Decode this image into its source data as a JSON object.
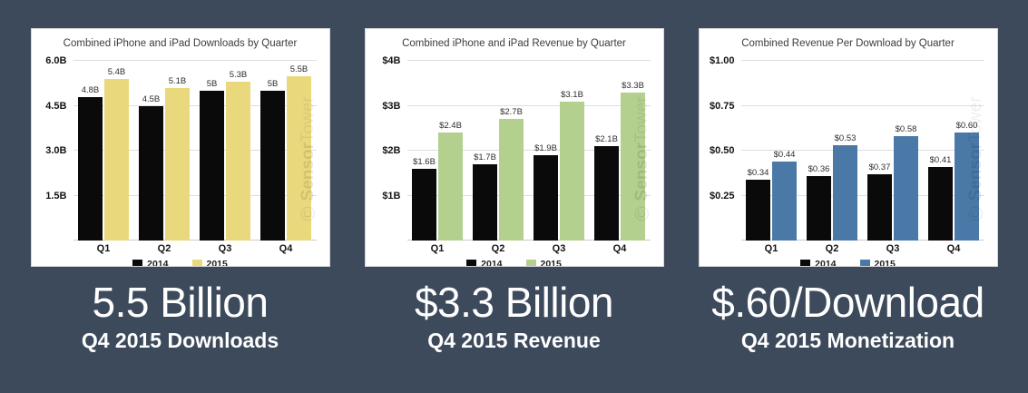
{
  "page": {
    "background_color": "#3d4a5c",
    "card_color": "#ffffff"
  },
  "watermark": {
    "logo_glyph": "©",
    "brand_first": "Sensor",
    "brand_second": "Tower"
  },
  "chart_data": [
    {
      "type": "bar",
      "title": "Combined iPhone and iPad Downloads by Quarter",
      "categories": [
        "Q1",
        "Q2",
        "Q3",
        "Q4"
      ],
      "series": [
        {
          "name": "2014",
          "color": "#0a0a0a",
          "values": [
            4.8,
            4.5,
            5.0,
            5.0
          ],
          "labels": [
            "4.8B",
            "4.5B",
            "5B",
            "5B"
          ]
        },
        {
          "name": "2015",
          "color": "#ead97c",
          "values": [
            5.4,
            5.1,
            5.3,
            5.5
          ],
          "labels": [
            "5.4B",
            "5.1B",
            "5.3B",
            "5.5B"
          ]
        }
      ],
      "ylim": [
        0,
        6.0
      ],
      "yticks": [
        {
          "value": 1.5,
          "label": "1.5B"
        },
        {
          "value": 3.0,
          "label": "3.0B"
        },
        {
          "value": 4.5,
          "label": "4.5B"
        },
        {
          "value": 6.0,
          "label": "6.0B"
        }
      ],
      "grid": true,
      "legend_position": "bottom"
    },
    {
      "type": "bar",
      "title": "Combined iPhone and iPad Revenue by Quarter",
      "categories": [
        "Q1",
        "Q2",
        "Q3",
        "Q4"
      ],
      "series": [
        {
          "name": "2014",
          "color": "#0a0a0a",
          "values": [
            1.6,
            1.7,
            1.9,
            2.1
          ],
          "labels": [
            "$1.6B",
            "$1.7B",
            "$1.9B",
            "$2.1B"
          ]
        },
        {
          "name": "2015",
          "color": "#b3d08f",
          "values": [
            2.4,
            2.7,
            3.1,
            3.3
          ],
          "labels": [
            "$2.4B",
            "$2.7B",
            "$3.1B",
            "$3.3B"
          ]
        }
      ],
      "ylim": [
        0,
        4.0
      ],
      "yticks": [
        {
          "value": 1.0,
          "label": "$1B"
        },
        {
          "value": 2.0,
          "label": "$2B"
        },
        {
          "value": 3.0,
          "label": "$3B"
        },
        {
          "value": 4.0,
          "label": "$4B"
        }
      ],
      "grid": true,
      "legend_position": "bottom"
    },
    {
      "type": "bar",
      "title": "Combined Revenue Per Download by Quarter",
      "categories": [
        "Q1",
        "Q2",
        "Q3",
        "Q4"
      ],
      "series": [
        {
          "name": "2014",
          "color": "#0a0a0a",
          "values": [
            0.34,
            0.36,
            0.37,
            0.41
          ],
          "labels": [
            "$0.34",
            "$0.36",
            "$0.37",
            "$0.41"
          ]
        },
        {
          "name": "2015",
          "color": "#4a79a8",
          "values": [
            0.44,
            0.53,
            0.58,
            0.6
          ],
          "labels": [
            "$0.44",
            "$0.53",
            "$0.58",
            "$0.60"
          ]
        }
      ],
      "ylim": [
        0,
        1.0
      ],
      "yticks": [
        {
          "value": 0.25,
          "label": "$0.25"
        },
        {
          "value": 0.5,
          "label": "$0.50"
        },
        {
          "value": 0.75,
          "label": "$0.75"
        },
        {
          "value": 1.0,
          "label": "$1.00"
        }
      ],
      "grid": true,
      "legend_position": "bottom"
    }
  ],
  "captions": [
    {
      "value": "5.5 Billion",
      "label": "Q4 2015 Downloads"
    },
    {
      "value": "$3.3 Billion",
      "label": "Q4 2015 Revenue"
    },
    {
      "value": "$.60/Download",
      "label": "Q4 2015 Monetization"
    }
  ]
}
